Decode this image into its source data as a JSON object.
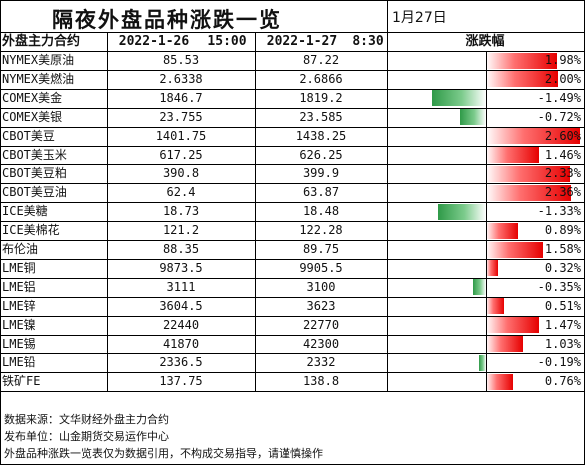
{
  "title": "隔夜外盘品种涨跌一览",
  "date_label": "1月27日",
  "headers": {
    "name": "外盘主力合约",
    "date1": "2022-1-26",
    "time1": "15:00",
    "date2": "2022-1-27",
    "time2": "8:30",
    "change": "涨跌幅"
  },
  "rows": [
    {
      "name": "NYMEX美原油",
      "prev": "85.53",
      "curr": "87.22",
      "pct": "1.98%",
      "change": 1.98
    },
    {
      "name": "NYMEX美燃油",
      "prev": "2.6338",
      "curr": "2.6866",
      "pct": "2.00%",
      "change": 2.0
    },
    {
      "name": "COMEX美金",
      "prev": "1846.7",
      "curr": "1819.2",
      "pct": "-1.49%",
      "change": -1.49
    },
    {
      "name": "COMEX美银",
      "prev": "23.755",
      "curr": "23.585",
      "pct": "-0.72%",
      "change": -0.72
    },
    {
      "name": "CBOT美豆",
      "prev": "1401.75",
      "curr": "1438.25",
      "pct": "2.60%",
      "change": 2.6
    },
    {
      "name": "CBOT美玉米",
      "prev": "617.25",
      "curr": "626.25",
      "pct": "1.46%",
      "change": 1.46
    },
    {
      "name": "CBOT美豆粕",
      "prev": "390.8",
      "curr": "399.9",
      "pct": "2.33%",
      "change": 2.33
    },
    {
      "name": "CBOT美豆油",
      "prev": "62.4",
      "curr": "63.87",
      "pct": "2.36%",
      "change": 2.36
    },
    {
      "name": "ICE美糖",
      "prev": "18.73",
      "curr": "18.48",
      "pct": "-1.33%",
      "change": -1.33
    },
    {
      "name": "ICE美棉花",
      "prev": "121.2",
      "curr": "122.28",
      "pct": "0.89%",
      "change": 0.89
    },
    {
      "name": "布伦油",
      "prev": "88.35",
      "curr": "89.75",
      "pct": "1.58%",
      "change": 1.58
    },
    {
      "name": "LME铜",
      "prev": "9873.5",
      "curr": "9905.5",
      "pct": "0.32%",
      "change": 0.32
    },
    {
      "name": "LME铝",
      "prev": "3111",
      "curr": "3100",
      "pct": "-0.35%",
      "change": -0.35
    },
    {
      "name": "LME锌",
      "prev": "3604.5",
      "curr": "3623",
      "pct": "0.51%",
      "change": 0.51
    },
    {
      "name": "LME镍",
      "prev": "22440",
      "curr": "22770",
      "pct": "1.47%",
      "change": 1.47
    },
    {
      "name": "LME锡",
      "prev": "41870",
      "curr": "42300",
      "pct": "1.03%",
      "change": 1.03
    },
    {
      "name": "LME铅",
      "prev": "2336.5",
      "curr": "2332",
      "pct": "-0.19%",
      "change": -0.19
    },
    {
      "name": "铁矿FE",
      "prev": "137.75",
      "curr": "138.8",
      "pct": "0.76%",
      "change": 0.76
    }
  ],
  "footer": [
    "数据来源：文华财经外盘主力合约",
    "发布单位：山金期货交易运作中心",
    "外盘品种涨跌一览表仅为数据引用，不构成交易指导，请谨慎操作"
  ],
  "colors": {
    "up": "#e60000",
    "down": "#2f9a48",
    "grid": "#000000"
  }
}
